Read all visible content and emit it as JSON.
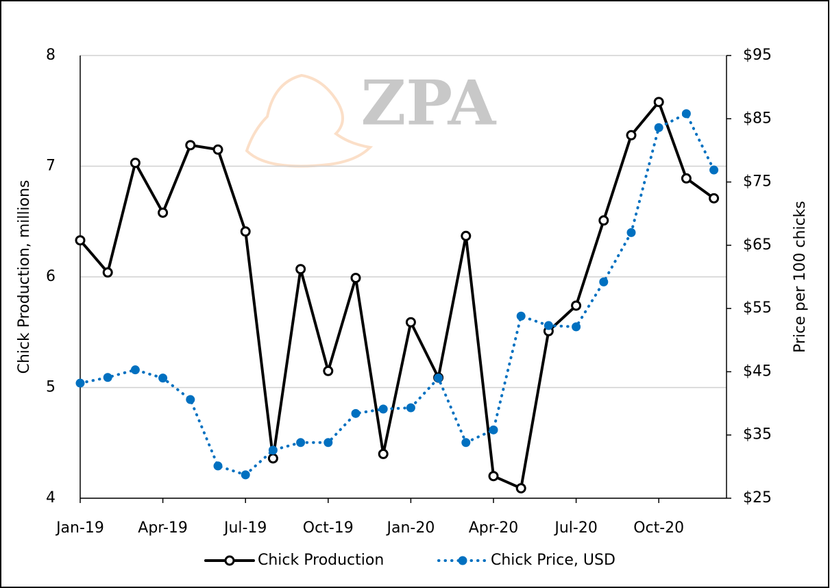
{
  "chart_data": {
    "type": "line",
    "watermark": "ZPA",
    "y_label": "Chick Production, millions",
    "y2_label": "Price per 100 chicks",
    "categories": [
      "Jan-19",
      null,
      null,
      "Apr-19",
      null,
      null,
      "Jul-19",
      null,
      null,
      "Oct-19",
      null,
      null,
      "Jan-20",
      null,
      null,
      "Apr-20",
      null,
      null,
      "Jul-20",
      null,
      null,
      "Oct-20",
      null,
      null
    ],
    "series": [
      {
        "name": "Chick Production",
        "color": "#000000",
        "axis": "y",
        "style": "solid",
        "values": [
          6.33,
          6.04,
          7.03,
          6.58,
          7.19,
          7.15,
          6.41,
          4.36,
          6.07,
          5.15,
          5.99,
          4.4,
          5.59,
          5.09,
          6.37,
          4.2,
          4.09,
          5.51,
          5.74,
          6.51,
          7.28,
          7.58,
          6.89,
          6.71
        ]
      },
      {
        "name": "Chick Price, USD",
        "color": "#0070c0",
        "axis": "y2",
        "style": "dotted",
        "values": [
          43.2,
          44.1,
          45.3,
          44.0,
          40.6,
          30.1,
          28.7,
          32.6,
          33.8,
          33.8,
          38.4,
          39.1,
          39.3,
          44.0,
          33.8,
          35.8,
          53.8,
          52.3,
          52.1,
          59.2,
          67.0,
          83.6,
          85.8,
          76.9
        ]
      }
    ],
    "ylim": [
      4,
      8
    ],
    "yticks": [
      4,
      5,
      6,
      7,
      8
    ],
    "y2lim": [
      25,
      95
    ],
    "y2ticks": [
      {
        "value": 25,
        "label": "$25"
      },
      {
        "value": 35,
        "label": "$35"
      },
      {
        "value": 45,
        "label": "$45"
      },
      {
        "value": 55,
        "label": "$55"
      },
      {
        "value": 65,
        "label": "$65"
      },
      {
        "value": 75,
        "label": "$75"
      },
      {
        "value": 85,
        "label": "$85"
      },
      {
        "value": 95,
        "label": "$95"
      }
    ],
    "grid": true,
    "legend": "bottom"
  }
}
